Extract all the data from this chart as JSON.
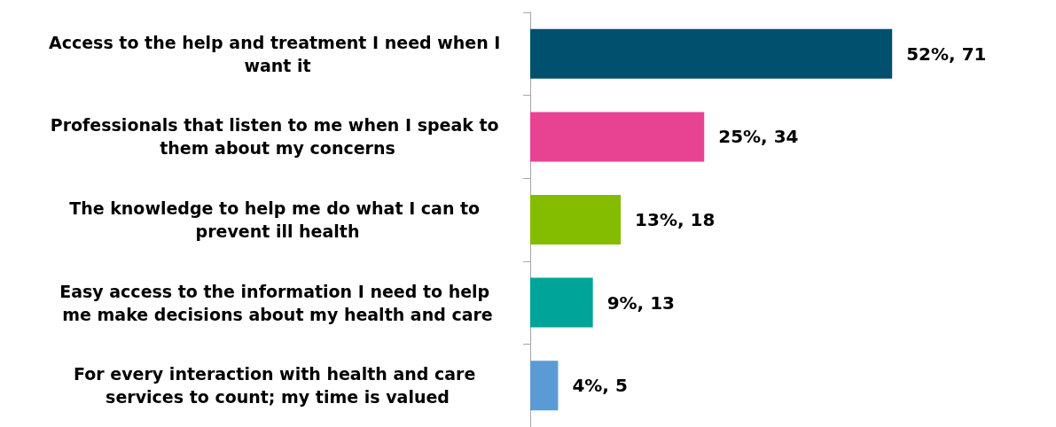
{
  "chart_data": {
    "type": "bar",
    "orientation": "horizontal",
    "categories": [
      "Access to the help and treatment I need when I want it",
      "Professionals that listen to me when I speak to them about my concerns",
      "The knowledge to help me do what I can to prevent ill health",
      "Easy access to the information I need to help me make decisions about my health and care",
      "For every interaction with health and care services to count; my time is valued"
    ],
    "values": [
      52,
      25,
      13,
      9,
      4
    ],
    "colors": [
      "#00506e",
      "#e84393",
      "#84bd00",
      "#00a499",
      "#5b9bd5"
    ],
    "value_labels": [
      "52%, 71",
      "25%, 34",
      "13%, 18",
      "9%, 13",
      "4%, 5"
    ],
    "grid": false
  }
}
